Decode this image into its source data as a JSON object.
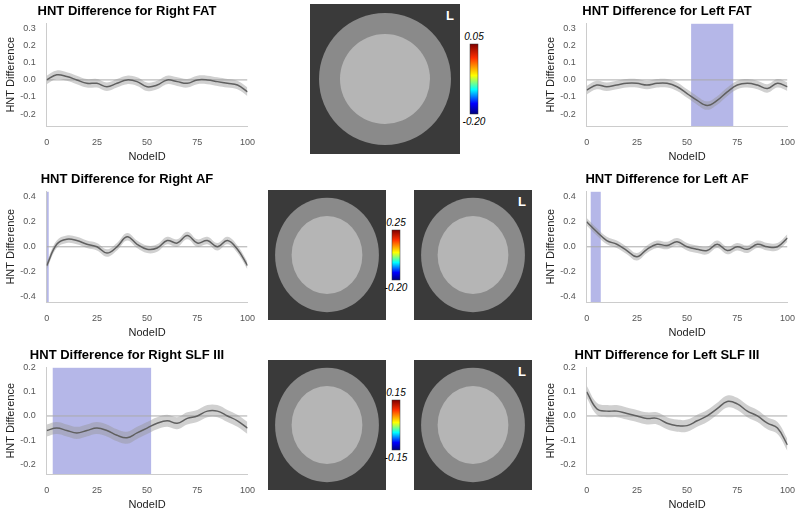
{
  "chart_data": [
    {
      "type": "line",
      "title": "HNT Difference for Right FAT",
      "x_label": "NodeID",
      "y_label": "HNT Difference",
      "x": [
        0,
        5,
        10,
        15,
        20,
        25,
        30,
        35,
        40,
        45,
        50,
        55,
        60,
        65,
        70,
        75,
        80,
        85,
        90,
        95,
        100
      ],
      "values": [
        0.0,
        0.03,
        0.02,
        0.0,
        -0.02,
        -0.02,
        -0.04,
        -0.02,
        0.0,
        -0.01,
        -0.04,
        -0.03,
        0.0,
        -0.01,
        -0.02,
        0.0,
        0.0,
        -0.01,
        -0.02,
        -0.03,
        -0.07
      ],
      "ci_halfwidth": 0.025,
      "hline": 0,
      "color": "#333333",
      "xlim": [
        0,
        100
      ],
      "xticks": [
        0,
        25,
        50,
        75,
        100
      ],
      "ylim": [
        -0.27,
        0.33
      ],
      "yticks": [
        -0.2,
        -0.1,
        {
          "value": 0,
          "label": "0.0"
        },
        0.1,
        0.2,
        0.3
      ],
      "grid": false
    },
    {
      "type": "line",
      "title": "HNT Difference for Left FAT",
      "x_label": "NodeID",
      "y_label": "HNT Difference",
      "x": [
        0,
        5,
        10,
        15,
        20,
        25,
        30,
        35,
        40,
        45,
        50,
        55,
        60,
        65,
        70,
        75,
        80,
        85,
        90,
        95,
        100
      ],
      "values": [
        -0.06,
        -0.03,
        -0.04,
        -0.03,
        -0.02,
        -0.02,
        -0.03,
        -0.02,
        -0.02,
        -0.04,
        -0.08,
        -0.12,
        -0.15,
        -0.12,
        -0.07,
        -0.03,
        -0.02,
        -0.03,
        -0.05,
        -0.02,
        -0.04
      ],
      "ci_halfwidth": 0.025,
      "highlight": [
        52,
        73
      ],
      "hline": 0,
      "color": "#333333",
      "xlim": [
        0,
        100
      ],
      "xticks": [
        0,
        25,
        50,
        75,
        100
      ],
      "ylim": [
        -0.27,
        0.33
      ],
      "yticks": [
        -0.2,
        -0.1,
        {
          "value": 0,
          "label": "0.0"
        },
        0.1,
        0.2,
        0.3
      ],
      "grid": false
    },
    {
      "type": "line",
      "title": "HNT Difference for Right AF",
      "x_label": "NodeID",
      "y_label": "HNT Difference",
      "x": [
        0,
        5,
        10,
        15,
        20,
        25,
        30,
        35,
        40,
        45,
        50,
        55,
        60,
        65,
        70,
        75,
        80,
        85,
        90,
        95,
        100
      ],
      "values": [
        -0.15,
        0.02,
        0.06,
        0.05,
        0.02,
        0.0,
        -0.05,
        0.0,
        0.08,
        0.02,
        -0.02,
        -0.01,
        0.05,
        0.03,
        0.09,
        0.03,
        0.05,
        0.0,
        0.05,
        -0.02,
        -0.15
      ],
      "ci_halfwidth": 0.03,
      "highlight": [
        0,
        1
      ],
      "hline": 0,
      "color": "#333333",
      "xlim": [
        0,
        100
      ],
      "xticks": [
        0,
        25,
        50,
        75,
        100
      ],
      "ylim": [
        -0.44,
        0.44
      ],
      "yticks": [
        -0.4,
        -0.2,
        {
          "value": 0,
          "label": "0.0"
        },
        0.2,
        0.4
      ],
      "grid": false
    },
    {
      "type": "line",
      "title": "HNT Difference for Left AF",
      "x_label": "NodeID",
      "y_label": "HNT Difference",
      "x": [
        0,
        5,
        10,
        15,
        20,
        25,
        30,
        35,
        40,
        45,
        50,
        55,
        60,
        65,
        70,
        75,
        80,
        85,
        90,
        95,
        100
      ],
      "values": [
        0.2,
        0.12,
        0.05,
        0.02,
        -0.03,
        -0.08,
        -0.02,
        0.02,
        0.01,
        0.04,
        0.0,
        -0.02,
        -0.03,
        0.02,
        -0.03,
        0.0,
        -0.02,
        0.02,
        0.0,
        0.0,
        0.07
      ],
      "ci_halfwidth": 0.03,
      "highlight": [
        2,
        7
      ],
      "hline": 0,
      "color": "#333333",
      "xlim": [
        0,
        100
      ],
      "xticks": [
        0,
        25,
        50,
        75,
        100
      ],
      "ylim": [
        -0.44,
        0.44
      ],
      "yticks": [
        -0.4,
        -0.2,
        {
          "value": 0,
          "label": "0.0"
        },
        0.2,
        0.4
      ],
      "grid": false
    },
    {
      "type": "line",
      "title": "HNT Difference for Right SLF III",
      "x_label": "NodeID",
      "y_label": "HNT Difference",
      "x": [
        0,
        5,
        10,
        15,
        20,
        25,
        30,
        35,
        40,
        45,
        50,
        55,
        60,
        65,
        70,
        75,
        80,
        85,
        90,
        95,
        100
      ],
      "values": [
        -0.06,
        -0.05,
        -0.06,
        -0.07,
        -0.06,
        -0.05,
        -0.06,
        -0.08,
        -0.09,
        -0.07,
        -0.05,
        -0.03,
        -0.02,
        -0.03,
        -0.01,
        0.0,
        0.02,
        0.02,
        0.0,
        -0.02,
        -0.05
      ],
      "ci_halfwidth": 0.025,
      "highlight": [
        3,
        52
      ],
      "hline": 0,
      "color": "#333333",
      "xlim": [
        0,
        100
      ],
      "xticks": [
        0,
        25,
        50,
        75,
        100
      ],
      "ylim": [
        -0.24,
        0.2
      ],
      "yticks": [
        -0.2,
        -0.1,
        {
          "value": 0,
          "label": "0.0"
        },
        0.1,
        0.2
      ],
      "grid": false
    },
    {
      "type": "line",
      "title": "HNT Difference for Left SLF III",
      "x_label": "NodeID",
      "y_label": "HNT Difference",
      "x": [
        0,
        5,
        10,
        15,
        20,
        25,
        30,
        35,
        40,
        45,
        50,
        55,
        60,
        65,
        70,
        75,
        80,
        85,
        90,
        95,
        100
      ],
      "values": [
        0.1,
        0.03,
        0.02,
        0.02,
        0.01,
        0.0,
        -0.01,
        -0.01,
        -0.03,
        -0.04,
        -0.04,
        -0.02,
        0.0,
        0.03,
        0.06,
        0.05,
        0.02,
        0.0,
        -0.03,
        -0.05,
        -0.12
      ],
      "ci_halfwidth": 0.025,
      "hline": 0,
      "color": "#333333",
      "xlim": [
        0,
        100
      ],
      "xticks": [
        0,
        25,
        50,
        75,
        100
      ],
      "ylim": [
        -0.24,
        0.2
      ],
      "yticks": [
        -0.2,
        -0.1,
        {
          "value": 0,
          "label": "0.0"
        },
        0.1,
        0.2
      ],
      "grid": false
    }
  ],
  "images": [
    {
      "views": 1,
      "side_label": "L",
      "colorbar": {
        "max": {
          "value": 0.05,
          "label": "0.05"
        },
        "min": {
          "value": -0.2,
          "label": "-0.20"
        }
      }
    },
    {
      "views": 2,
      "side_label": "L",
      "colorbar": {
        "max": {
          "value": 0.25,
          "label": "0.25"
        },
        "min": {
          "value": -0.2,
          "label": "-0.20"
        }
      }
    },
    {
      "views": 2,
      "side_label": "L",
      "colorbar": {
        "max": {
          "value": 0.15,
          "label": "0.15"
        },
        "min": {
          "value": -0.15,
          "label": "-0.15"
        }
      }
    }
  ]
}
